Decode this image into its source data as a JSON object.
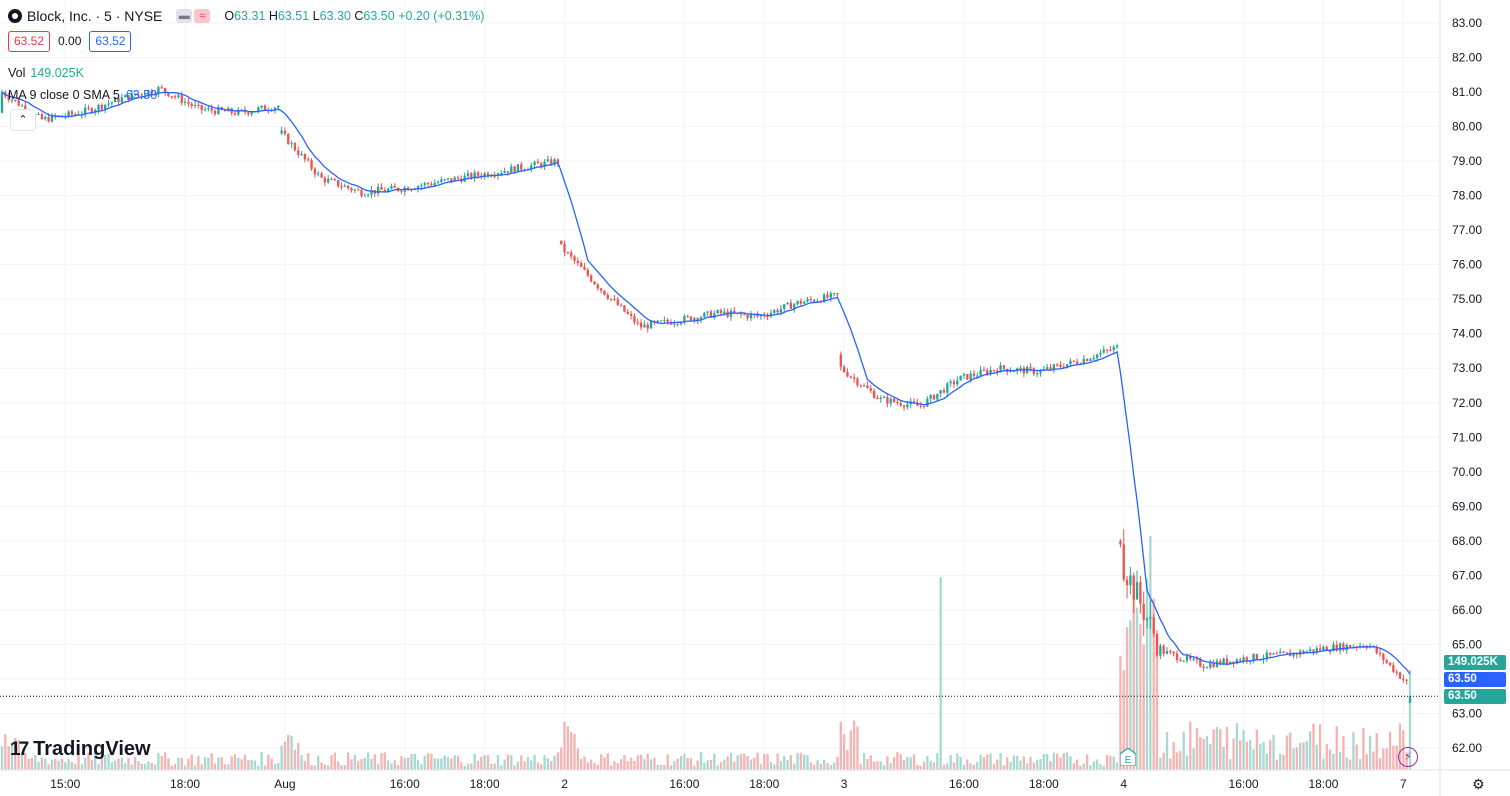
{
  "header": {
    "symbol_title": "Block, Inc. · 5 · NYSE",
    "logo_icon": "block-logo-icon",
    "ohlc": {
      "o_label": "O",
      "o": "63.31",
      "h_label": "H",
      "h": "63.51",
      "l_label": "L",
      "l": "63.30",
      "c_label": "C",
      "c": "63.50",
      "change": "+0.20 (+0.31%)"
    },
    "bid": "63.52",
    "spread": "0.00",
    "ask": "63.52",
    "vol_label": "Vol",
    "vol_value": "149.025K",
    "ma_label": "MA 9 close 0 SMA 5",
    "ma_value": "63.50",
    "collapse_icon": "chevron-up-icon"
  },
  "price_tags": {
    "volume": "149.025K",
    "ma": "63.50",
    "price": "63.50"
  },
  "brand": "TradingView",
  "colors": {
    "up": "#26a69a",
    "down": "#ef5350",
    "ma": "#2962ff",
    "grid": "#f0f3fa"
  },
  "chart_data": {
    "type": "candlestick",
    "ylim": [
      61.5,
      83.4
    ],
    "y_ticks": [
      "83.00",
      "82.00",
      "81.00",
      "80.00",
      "79.00",
      "78.00",
      "77.00",
      "76.00",
      "75.00",
      "74.00",
      "73.00",
      "72.00",
      "71.00",
      "70.00",
      "69.00",
      "68.00",
      "67.00",
      "66.00",
      "65.00",
      "64.00",
      "63.00",
      "62.00"
    ],
    "x_labels": [
      {
        "label": "15:00",
        "i": 19
      },
      {
        "label": "18:00",
        "i": 55
      },
      {
        "label": "Aug",
        "i": 85
      },
      {
        "label": "16:00",
        "i": 121
      },
      {
        "label": "18:00",
        "i": 145
      },
      {
        "label": "2",
        "i": 169
      },
      {
        "label": "16:00",
        "i": 205
      },
      {
        "label": "18:00",
        "i": 229
      },
      {
        "label": "3",
        "i": 253
      },
      {
        "label": "16:00",
        "i": 289
      },
      {
        "label": "18:00",
        "i": 313
      },
      {
        "label": "4",
        "i": 337
      },
      {
        "label": "16:00",
        "i": 373
      },
      {
        "label": "18:00",
        "i": 397
      },
      {
        "label": "7",
        "i": 421
      }
    ],
    "segments": [
      {
        "start": 80.4,
        "end": 80.6,
        "drift": "81.0,80.2,80.4,80.8,81.1,80.5,80.4,80.6",
        "volume_profile": "mid"
      },
      {
        "start": 79.8,
        "end": 79.0,
        "drift": "79.8,78.5,78.1,78.2,78.4,78.6,78.8,79.0",
        "volume_profile": "mid"
      },
      {
        "start": 76.7,
        "end": 74.7,
        "drift": "76.5,75.3,74.2,74.4,74.6,74.5,74.9,75.1",
        "volume_profile": "mid"
      },
      {
        "start": 73.4,
        "end": 73.6,
        "drift": "73.0,72.1,71.9,72.7,73.0,72.9,73.2,73.6",
        "volume_profile": "spike"
      },
      {
        "start": 68.0,
        "end": 63.5,
        "drift": "67.5,64.8,64.4,64.6,64.7,64.9,65.0,63.8",
        "volume_profile": "high"
      }
    ],
    "last": {
      "o": 63.31,
      "h": 63.51,
      "l": 63.3,
      "c": 63.5
    },
    "series": [
      {
        "name": "MA 9 close 0 SMA 5",
        "ma_period": 9
      }
    ]
  }
}
